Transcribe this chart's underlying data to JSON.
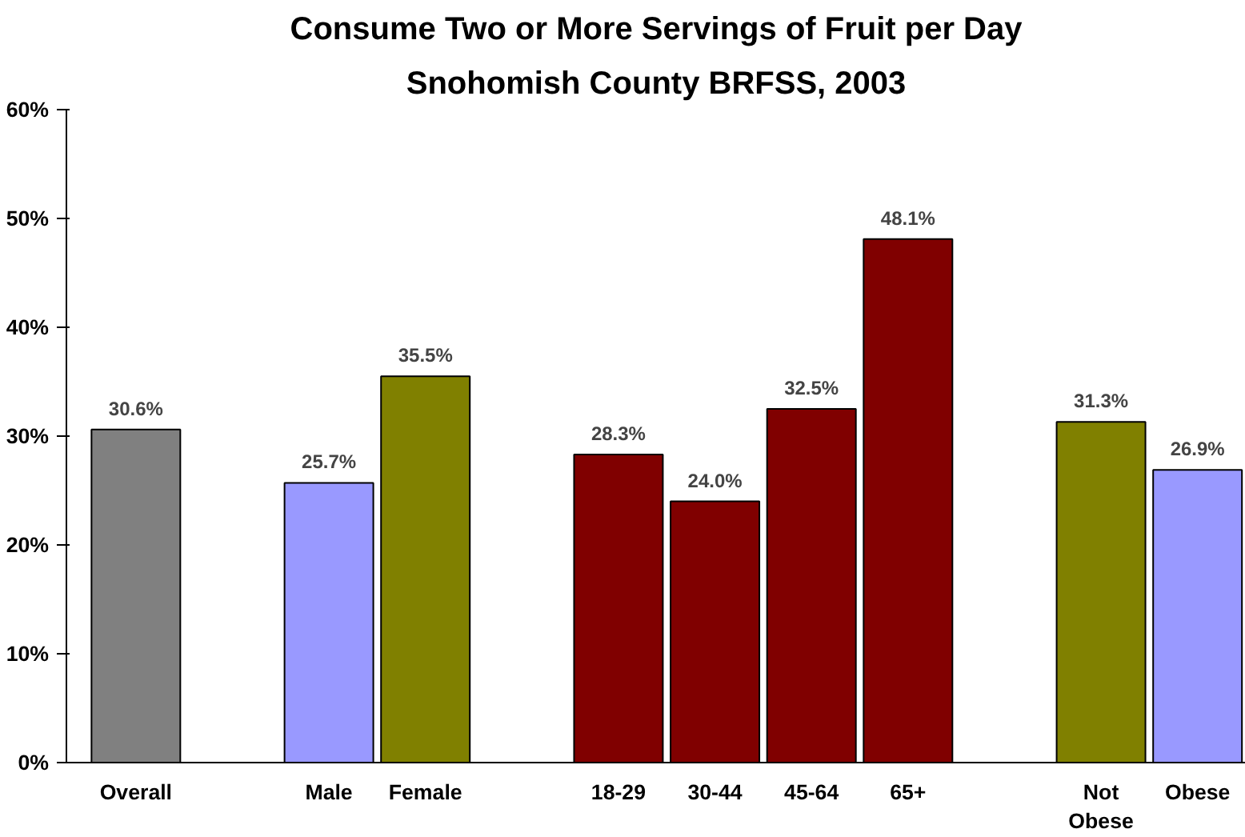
{
  "chart_data": {
    "type": "bar",
    "title": "Consume Two or More Servings of Fruit per Day",
    "subtitle": "Snohomish County BRFSS, 2003",
    "categories": [
      "Overall",
      null,
      "Male",
      "Female",
      null,
      "18-29",
      "30-44",
      "45-64",
      "65+",
      null,
      "Not Obese",
      "Obese"
    ],
    "values": [
      30.6,
      null,
      25.7,
      35.5,
      null,
      28.3,
      24.0,
      32.5,
      48.1,
      null,
      31.3,
      26.9
    ],
    "colors": [
      "#808080",
      "#ffffff",
      "#9999ff",
      "#808000",
      "#ffffff",
      "#800000",
      "#800000",
      "#800000",
      "#800000",
      "#ffffff",
      "#808000",
      "#9999ff"
    ],
    "value_labels": [
      "30.6%",
      null,
      "25.7%",
      "35.5%",
      null,
      "28.3%",
      "24.0%",
      "32.5%",
      "48.1%",
      null,
      "31.3%",
      "26.9%"
    ],
    "ylim": [
      0,
      60
    ],
    "yticks": [
      {
        "value": 0,
        "label": "0%"
      },
      {
        "value": 10,
        "label": "10%"
      },
      {
        "value": 20,
        "label": "20%"
      },
      {
        "value": 30,
        "label": "30%"
      },
      {
        "value": 40,
        "label": "40%"
      },
      {
        "value": 50,
        "label": "50%"
      },
      {
        "value": 60,
        "label": "60%"
      }
    ],
    "grid": false
  }
}
